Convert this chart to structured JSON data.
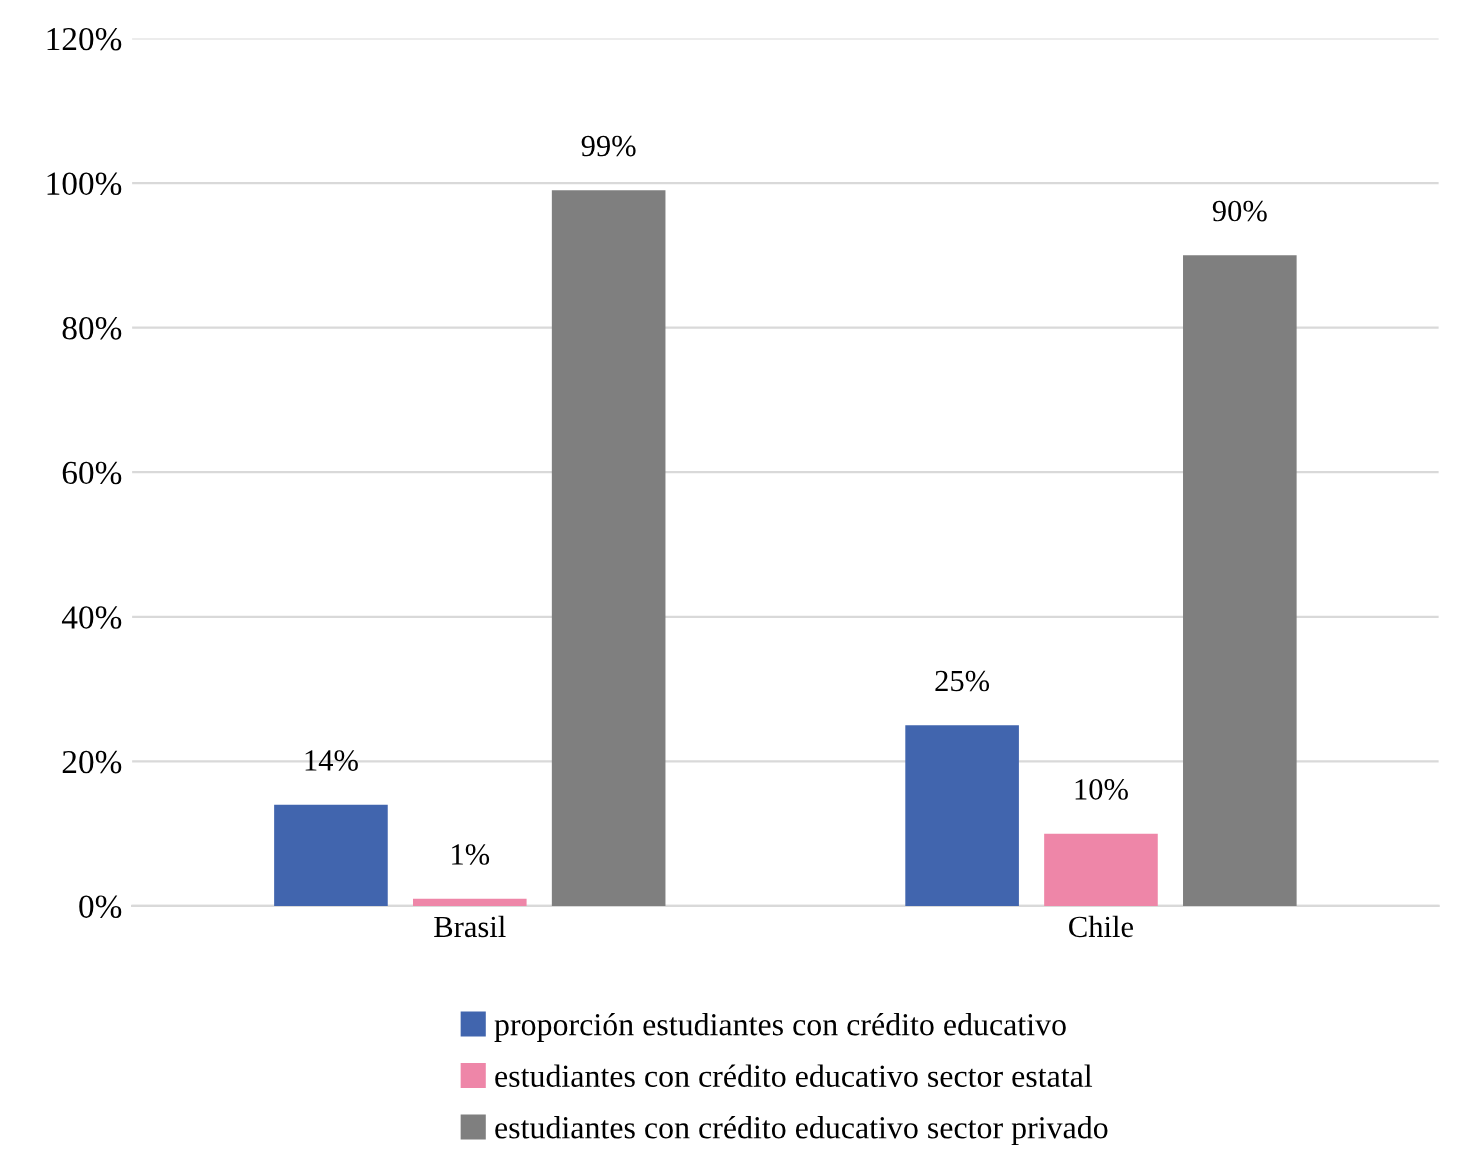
{
  "chart_data": {
    "type": "bar",
    "categories": [
      "Brasil",
      "Chile"
    ],
    "series": [
      {
        "name": "proporción estudiantes con crédito educativo",
        "color": "#4165ae",
        "values": [
          14,
          25
        ],
        "value_labels": [
          "14%",
          "25%"
        ]
      },
      {
        "name": "estudiantes con crédito educativo sector estatal",
        "color": "#ee86a8",
        "values": [
          1,
          10
        ],
        "value_labels": [
          "1%",
          "10%"
        ]
      },
      {
        "name": "estudiantes con crédito educativo sector privado",
        "color": "#7f7f7f",
        "values": [
          99,
          90
        ],
        "value_labels": [
          "99%",
          "90%"
        ]
      }
    ],
    "ylim": [
      0,
      120
    ],
    "yticks": [
      {
        "value": 0,
        "label": "0%"
      },
      {
        "value": 20,
        "label": "20%"
      },
      {
        "value": 40,
        "label": "40%"
      },
      {
        "value": 60,
        "label": "60%"
      },
      {
        "value": 80,
        "label": "80%"
      },
      {
        "value": 100,
        "label": "100%"
      },
      {
        "value": 120,
        "label": "120%"
      }
    ],
    "grid": "y",
    "legend": "bottom"
  }
}
